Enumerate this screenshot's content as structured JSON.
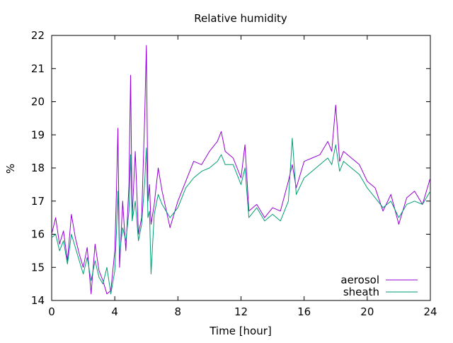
{
  "chart_data": {
    "type": "line",
    "title": "Relative humidity",
    "xlabel": "Time [hour]",
    "ylabel": "%",
    "xlim": [
      0,
      24
    ],
    "ylim": [
      14,
      22
    ],
    "xticks": [
      0,
      4,
      8,
      12,
      16,
      20,
      24
    ],
    "yticks": [
      14,
      15,
      16,
      17,
      18,
      19,
      20,
      21,
      22
    ],
    "grid": false,
    "legend": "bottom-right",
    "series": [
      {
        "name": "aerosol",
        "color": "#9400d3",
        "x": [
          0,
          0.25,
          0.5,
          0.75,
          1,
          1.25,
          1.5,
          1.75,
          2,
          2.25,
          2.5,
          2.75,
          3,
          3.25,
          3.5,
          3.75,
          4,
          4.1,
          4.2,
          4.3,
          4.5,
          4.7,
          4.9,
          5.0,
          5.1,
          5.3,
          5.5,
          5.7,
          5.9,
          6.0,
          6.1,
          6.2,
          6.3,
          6.5,
          6.75,
          7,
          7.5,
          8,
          8.5,
          9,
          9.5,
          10,
          10.5,
          10.75,
          11,
          11.5,
          12,
          12.25,
          12.5,
          13,
          13.5,
          14,
          14.5,
          15,
          15.25,
          15.5,
          16,
          16.5,
          17,
          17.5,
          17.75,
          18,
          18.25,
          18.5,
          19,
          19.5,
          20,
          20.5,
          21,
          21.5,
          22,
          22.5,
          23,
          23.5,
          24
        ],
        "values": [
          16.0,
          16.5,
          15.7,
          16.1,
          15.2,
          16.6,
          15.9,
          15.4,
          15.0,
          15.6,
          14.2,
          15.7,
          14.9,
          14.6,
          14.2,
          14.3,
          15.5,
          17.2,
          19.2,
          15.0,
          17.0,
          15.5,
          17.5,
          20.8,
          16.5,
          18.5,
          16.0,
          16.5,
          19.6,
          21.7,
          17.0,
          17.5,
          16.3,
          16.9,
          18.0,
          17.3,
          16.2,
          17.0,
          17.6,
          18.2,
          18.1,
          18.5,
          18.8,
          19.1,
          18.5,
          18.3,
          17.7,
          18.7,
          16.7,
          16.9,
          16.5,
          16.8,
          16.7,
          17.6,
          18.1,
          17.4,
          18.2,
          18.3,
          18.4,
          18.8,
          18.5,
          19.9,
          18.2,
          18.5,
          18.3,
          18.1,
          17.6,
          17.4,
          16.7,
          17.2,
          16.3,
          17.1,
          17.3,
          16.9,
          17.7
        ]
      },
      {
        "name": "sheath",
        "color": "#009e73",
        "x": [
          0,
          0.25,
          0.5,
          0.75,
          1,
          1.25,
          1.5,
          1.75,
          2,
          2.25,
          2.5,
          2.75,
          3,
          3.25,
          3.5,
          3.75,
          4,
          4.1,
          4.2,
          4.3,
          4.5,
          4.7,
          4.9,
          5.0,
          5.1,
          5.3,
          5.5,
          5.7,
          5.9,
          6.0,
          6.1,
          6.2,
          6.3,
          6.5,
          6.75,
          7,
          7.5,
          8,
          8.5,
          9,
          9.5,
          10,
          10.5,
          10.75,
          11,
          11.5,
          12,
          12.25,
          12.5,
          13,
          13.5,
          14,
          14.5,
          15,
          15.25,
          15.5,
          16,
          16.5,
          17,
          17.5,
          17.75,
          18,
          18.25,
          18.5,
          19,
          19.5,
          20,
          20.5,
          21,
          21.5,
          22,
          22.5,
          23,
          23.5,
          24
        ],
        "values": [
          15.9,
          16.0,
          15.5,
          15.8,
          15.1,
          16.0,
          15.6,
          15.2,
          14.8,
          15.3,
          14.6,
          15.2,
          14.7,
          14.5,
          15.0,
          14.2,
          14.9,
          16.0,
          17.3,
          15.4,
          16.2,
          15.8,
          16.7,
          18.4,
          16.4,
          17.0,
          15.8,
          16.3,
          17.6,
          18.6,
          16.5,
          16.7,
          14.8,
          16.6,
          17.2,
          16.9,
          16.5,
          16.8,
          17.4,
          17.7,
          17.9,
          18.0,
          18.2,
          18.4,
          18.1,
          18.1,
          17.5,
          18.0,
          16.5,
          16.8,
          16.4,
          16.6,
          16.4,
          17.0,
          18.9,
          17.2,
          17.7,
          17.9,
          18.1,
          18.3,
          18.1,
          18.7,
          17.9,
          18.2,
          18.0,
          17.8,
          17.4,
          17.1,
          16.8,
          17.0,
          16.5,
          16.9,
          17.0,
          16.9,
          17.3
        ]
      }
    ]
  }
}
